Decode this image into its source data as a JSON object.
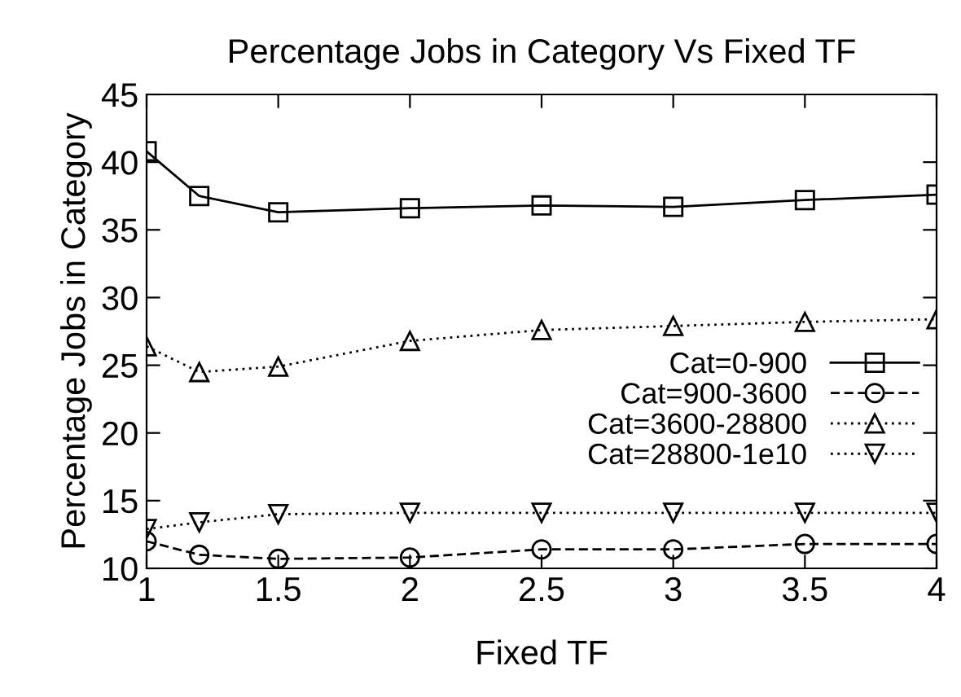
{
  "chart_data": {
    "type": "line",
    "title": "Percentage Jobs in Category Vs Fixed TF",
    "xlabel": "Fixed TF",
    "ylabel": "Percentage Jobs in Category",
    "x": [
      1,
      1.2,
      1.5,
      2,
      2.5,
      3,
      3.5,
      4
    ],
    "series": [
      {
        "name": "Cat=0-900",
        "color": "#000000",
        "marker": "square",
        "line_style": "solid",
        "values": [
          40.8,
          37.5,
          36.3,
          36.6,
          36.8,
          36.7,
          37.2,
          37.6
        ]
      },
      {
        "name": "Cat=900-3600",
        "color": "#000000",
        "marker": "circle",
        "line_style": "dashed",
        "values": [
          12.0,
          11.0,
          10.7,
          10.8,
          11.4,
          11.4,
          11.8,
          11.8
        ]
      },
      {
        "name": "Cat=3600-28800",
        "color": "#000000",
        "marker": "triangle",
        "line_style": "dotted",
        "values": [
          26.4,
          24.5,
          24.9,
          26.8,
          27.6,
          27.9,
          28.2,
          28.4
        ]
      },
      {
        "name": "Cat=28800-1e10",
        "color": "#000000",
        "marker": "triangle_down",
        "line_style": "dotted",
        "values": [
          12.9,
          13.4,
          14.0,
          14.1,
          14.1,
          14.1,
          14.1,
          14.1
        ]
      }
    ],
    "xlim": [
      1,
      4
    ],
    "xticks": [
      1,
      1.5,
      2,
      2.5,
      3,
      3.5,
      4
    ],
    "ylim": [
      10,
      45
    ],
    "yticks": [
      10,
      15,
      20,
      25,
      30,
      35,
      40,
      45
    ],
    "grid": false,
    "legend": "bottom right"
  }
}
